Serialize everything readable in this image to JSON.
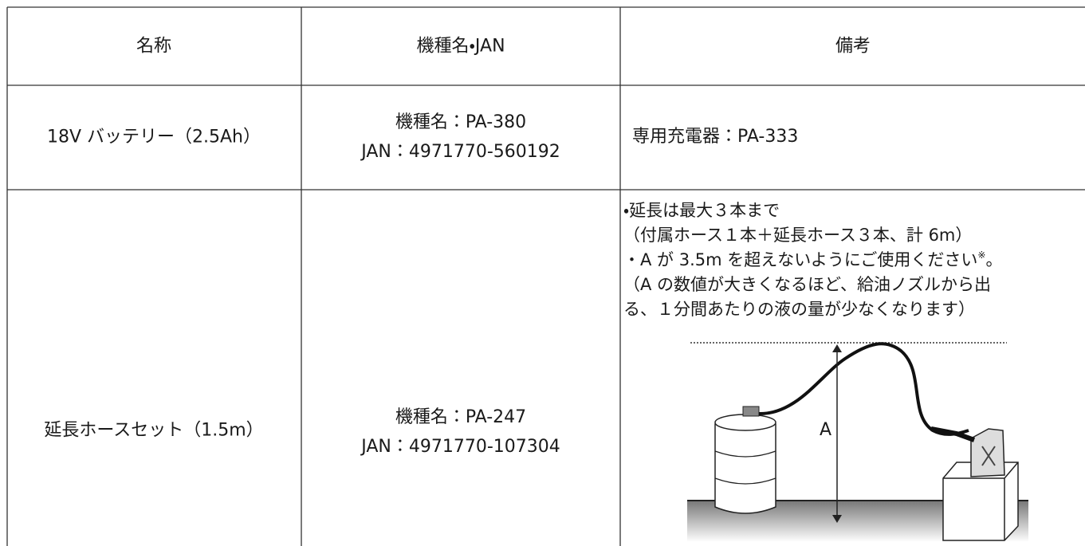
{
  "table": {
    "header": [
      "名称",
      "機種名・JAN",
      "備考"
    ],
    "rows": [
      {
        "name": "18V バッテリー（2.5Ah）",
        "model": [
          "機種名：PA-380",
          "JAN：4971770-560192"
        ],
        "notes": [
          "専用充電器：PA-333"
        ]
      },
      {
        "name": "延長ホースセット（1.5m）",
        "model": [
          "機種名：PA-247",
          "JAN：4971770-107304"
        ],
        "notes": [
          "・延長は最大３本まで",
          "（付属ホース１本＋延長ホース３本、計 6m）"
        ],
        "note_sup": {
          "text": "・A が 3.5m を超えないようにご使用ください",
          "mark": "※",
          "end": "。"
        },
        "notes_after": [
          "（A の数値が大きくなるほど、給油ノズルから出",
          "る、１分間あたりの液の量が少なくなります）"
        ],
        "figure_label": "A"
      }
    ]
  }
}
